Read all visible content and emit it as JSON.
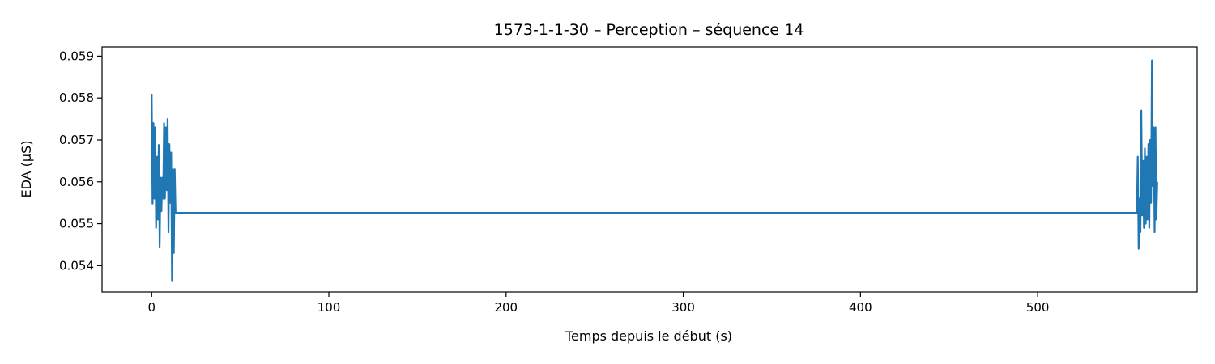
{
  "chart_data": {
    "type": "line",
    "title": "1573-1-1-30 – Perception – séquence 14",
    "xlabel": "Temps depuis le début (s)",
    "ylabel": "EDA (µS)",
    "xlim": [
      -28,
      590
    ],
    "ylim": [
      0.05337,
      0.05922
    ],
    "xticks": [
      0,
      100,
      200,
      300,
      400,
      500
    ],
    "xtick_labels": [
      "0",
      "100",
      "200",
      "300",
      "400",
      "500"
    ],
    "yticks": [
      0.054,
      0.055,
      0.056,
      0.057,
      0.058,
      0.059
    ],
    "ytick_labels": [
      "0.054",
      "0.055",
      "0.056",
      "0.057",
      "0.058",
      "0.059"
    ],
    "grid": false,
    "legend": "none",
    "series_color": "#1f77b4",
    "series": [
      {
        "x": [
          0,
          0.5,
          1,
          1.5,
          2,
          2.5,
          3,
          3.5,
          4,
          4.5,
          5,
          5.5,
          6,
          6.5,
          7,
          7.5,
          8,
          8.5,
          9,
          9.5,
          10,
          10.5,
          11,
          11.5,
          12,
          12.5,
          13,
          13.5,
          14,
          556,
          556.5,
          557,
          557.5,
          558,
          558.5,
          559,
          559.5,
          560,
          560.5,
          561,
          561.5,
          562,
          562.5,
          563,
          563.5,
          564,
          564.5,
          565,
          565.5,
          566,
          566.5,
          567,
          567.5
        ],
        "y": [
          0.0581,
          0.05548,
          0.0574,
          0.0556,
          0.0573,
          0.0549,
          0.0566,
          0.0551,
          0.05688,
          0.05445,
          0.0561,
          0.0553,
          0.0561,
          0.0556,
          0.0574,
          0.0556,
          0.0573,
          0.0558,
          0.0575,
          0.0548,
          0.0569,
          0.0555,
          0.0567,
          0.05363,
          0.0563,
          0.0543,
          0.0563,
          0.05526,
          0.05526,
          0.05526,
          0.0566,
          0.0544,
          0.0556,
          0.0548,
          0.0577,
          0.0552,
          0.0565,
          0.0549,
          0.0568,
          0.055,
          0.0566,
          0.0551,
          0.0569,
          0.0549,
          0.057,
          0.0555,
          0.0589,
          0.0559,
          0.0573,
          0.0548,
          0.0573,
          0.0551,
          0.056
        ]
      }
    ]
  }
}
